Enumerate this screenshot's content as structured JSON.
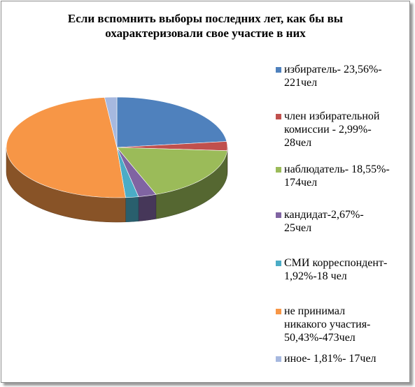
{
  "chart_data": {
    "type": "pie",
    "title": "Если вспомнить выборы последних лет, как бы вы охарактеризовали свое участие в них",
    "title_lines": [
      "Если вспомнить выборы последних лет, как бы вы",
      "охарактеризовали свое участие в них"
    ],
    "legend_position": "right",
    "slices": [
      {
        "label": "избиратель- 23,56%-221чел",
        "lines": [
          "избиратель- 23,56%-",
          "221чел"
        ],
        "percent": 23.56,
        "count": 221,
        "color": "#4F81BD"
      },
      {
        "label": "член избирательной комиссии - 2,99%-28чел",
        "lines": [
          "член избирательной",
          "комиссии - 2,99%-",
          "28чел"
        ],
        "percent": 2.99,
        "count": 28,
        "color": "#C0504D"
      },
      {
        "label": "наблюдатель- 18,55%-174чел",
        "lines": [
          "наблюдатель- 18,55%-",
          "174чел"
        ],
        "percent": 18.55,
        "count": 174,
        "color": "#9BBB59"
      },
      {
        "label": "кандидат-2,67%-25чел",
        "lines": [
          "кандидат-2,67%-",
          "25чел"
        ],
        "percent": 2.67,
        "count": 25,
        "color": "#8064A2"
      },
      {
        "label": "СМИ корреспондент-1,92%-18 чел",
        "lines": [
          "СМИ корреспондент-",
          "1,92%-18  чел"
        ],
        "percent": 1.92,
        "count": 18,
        "color": "#4BACC6"
      },
      {
        "label": "не принимал никакого участия-50,43%-473чел",
        "lines": [
          "не принимал",
          "никакого участия-",
          "50,43%-473чел"
        ],
        "percent": 50.43,
        "count": 473,
        "color": "#F79646"
      },
      {
        "label": "иное- 1,81%- 17чел",
        "lines": [
          "иное- 1,81%- 17чел"
        ],
        "percent": 1.81,
        "count": 17,
        "color": "#A6B8DF"
      }
    ]
  }
}
